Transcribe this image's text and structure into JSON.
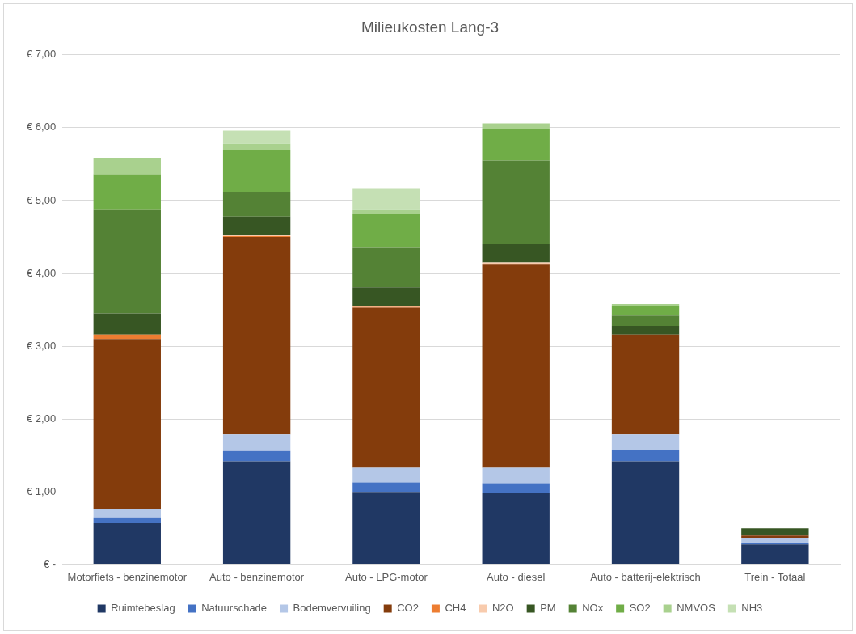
{
  "chart_data": {
    "type": "bar",
    "title": "Milieukosten Lang-3",
    "stacked": true,
    "grid": "y",
    "legend": "bottom",
    "categories": [
      "Motorfiets - benzinemotor",
      "Auto - benzinemotor",
      "Auto - LPG-motor",
      "Auto - diesel",
      "Auto - batterij-elektrisch",
      "Trein - Totaal"
    ],
    "ylim": [
      0,
      7
    ],
    "yticks": [
      {
        "value": 0,
        "label": "€ -"
      },
      {
        "value": 1,
        "label": "€ 1,00"
      },
      {
        "value": 2,
        "label": "€ 2,00"
      },
      {
        "value": 3,
        "label": "€ 3,00"
      },
      {
        "value": 4,
        "label": "€ 4,00"
      },
      {
        "value": 5,
        "label": "€ 5,00"
      },
      {
        "value": 6,
        "label": "€ 6,00"
      },
      {
        "value": 7,
        "label": "€ 7,00"
      }
    ],
    "series": [
      {
        "name": "Ruimtebeslag",
        "color": "#203864",
        "values": [
          0.57,
          1.42,
          0.99,
          0.98,
          1.42,
          0.28
        ]
      },
      {
        "name": "Natuurschade",
        "color": "#4472c4",
        "values": [
          0.08,
          0.14,
          0.14,
          0.14,
          0.15,
          0.02
        ]
      },
      {
        "name": "Bodemvervuiling",
        "color": "#b4c7e7",
        "values": [
          0.11,
          0.23,
          0.2,
          0.21,
          0.22,
          0.07
        ]
      },
      {
        "name": "CO2",
        "color": "#843c0c",
        "values": [
          2.34,
          2.71,
          2.2,
          2.79,
          1.37,
          0.03
        ]
      },
      {
        "name": "CH4",
        "color": "#ed7d31",
        "values": [
          0.06,
          0.01,
          0.01,
          0.01,
          0,
          0
        ]
      },
      {
        "name": "N2O",
        "color": "#f8cbad",
        "values": [
          0,
          0.02,
          0.01,
          0.02,
          0,
          0
        ]
      },
      {
        "name": "PM",
        "color": "#375623",
        "values": [
          0.29,
          0.25,
          0.26,
          0.25,
          0.12,
          0.1
        ]
      },
      {
        "name": "NOx",
        "color": "#548235",
        "values": [
          1.42,
          0.33,
          0.54,
          1.15,
          0.14,
          0
        ]
      },
      {
        "name": "SO2",
        "color": "#70ad47",
        "values": [
          0.49,
          0.58,
          0.46,
          0.43,
          0.13,
          0
        ]
      },
      {
        "name": "NMVOS",
        "color": "#a9d18e",
        "values": [
          0.22,
          0.09,
          0.06,
          0.08,
          0.03,
          0
        ]
      },
      {
        "name": "NH3",
        "color": "#c5e0b4",
        "values": [
          0,
          0.18,
          0.29,
          0,
          0,
          0
        ]
      }
    ]
  }
}
